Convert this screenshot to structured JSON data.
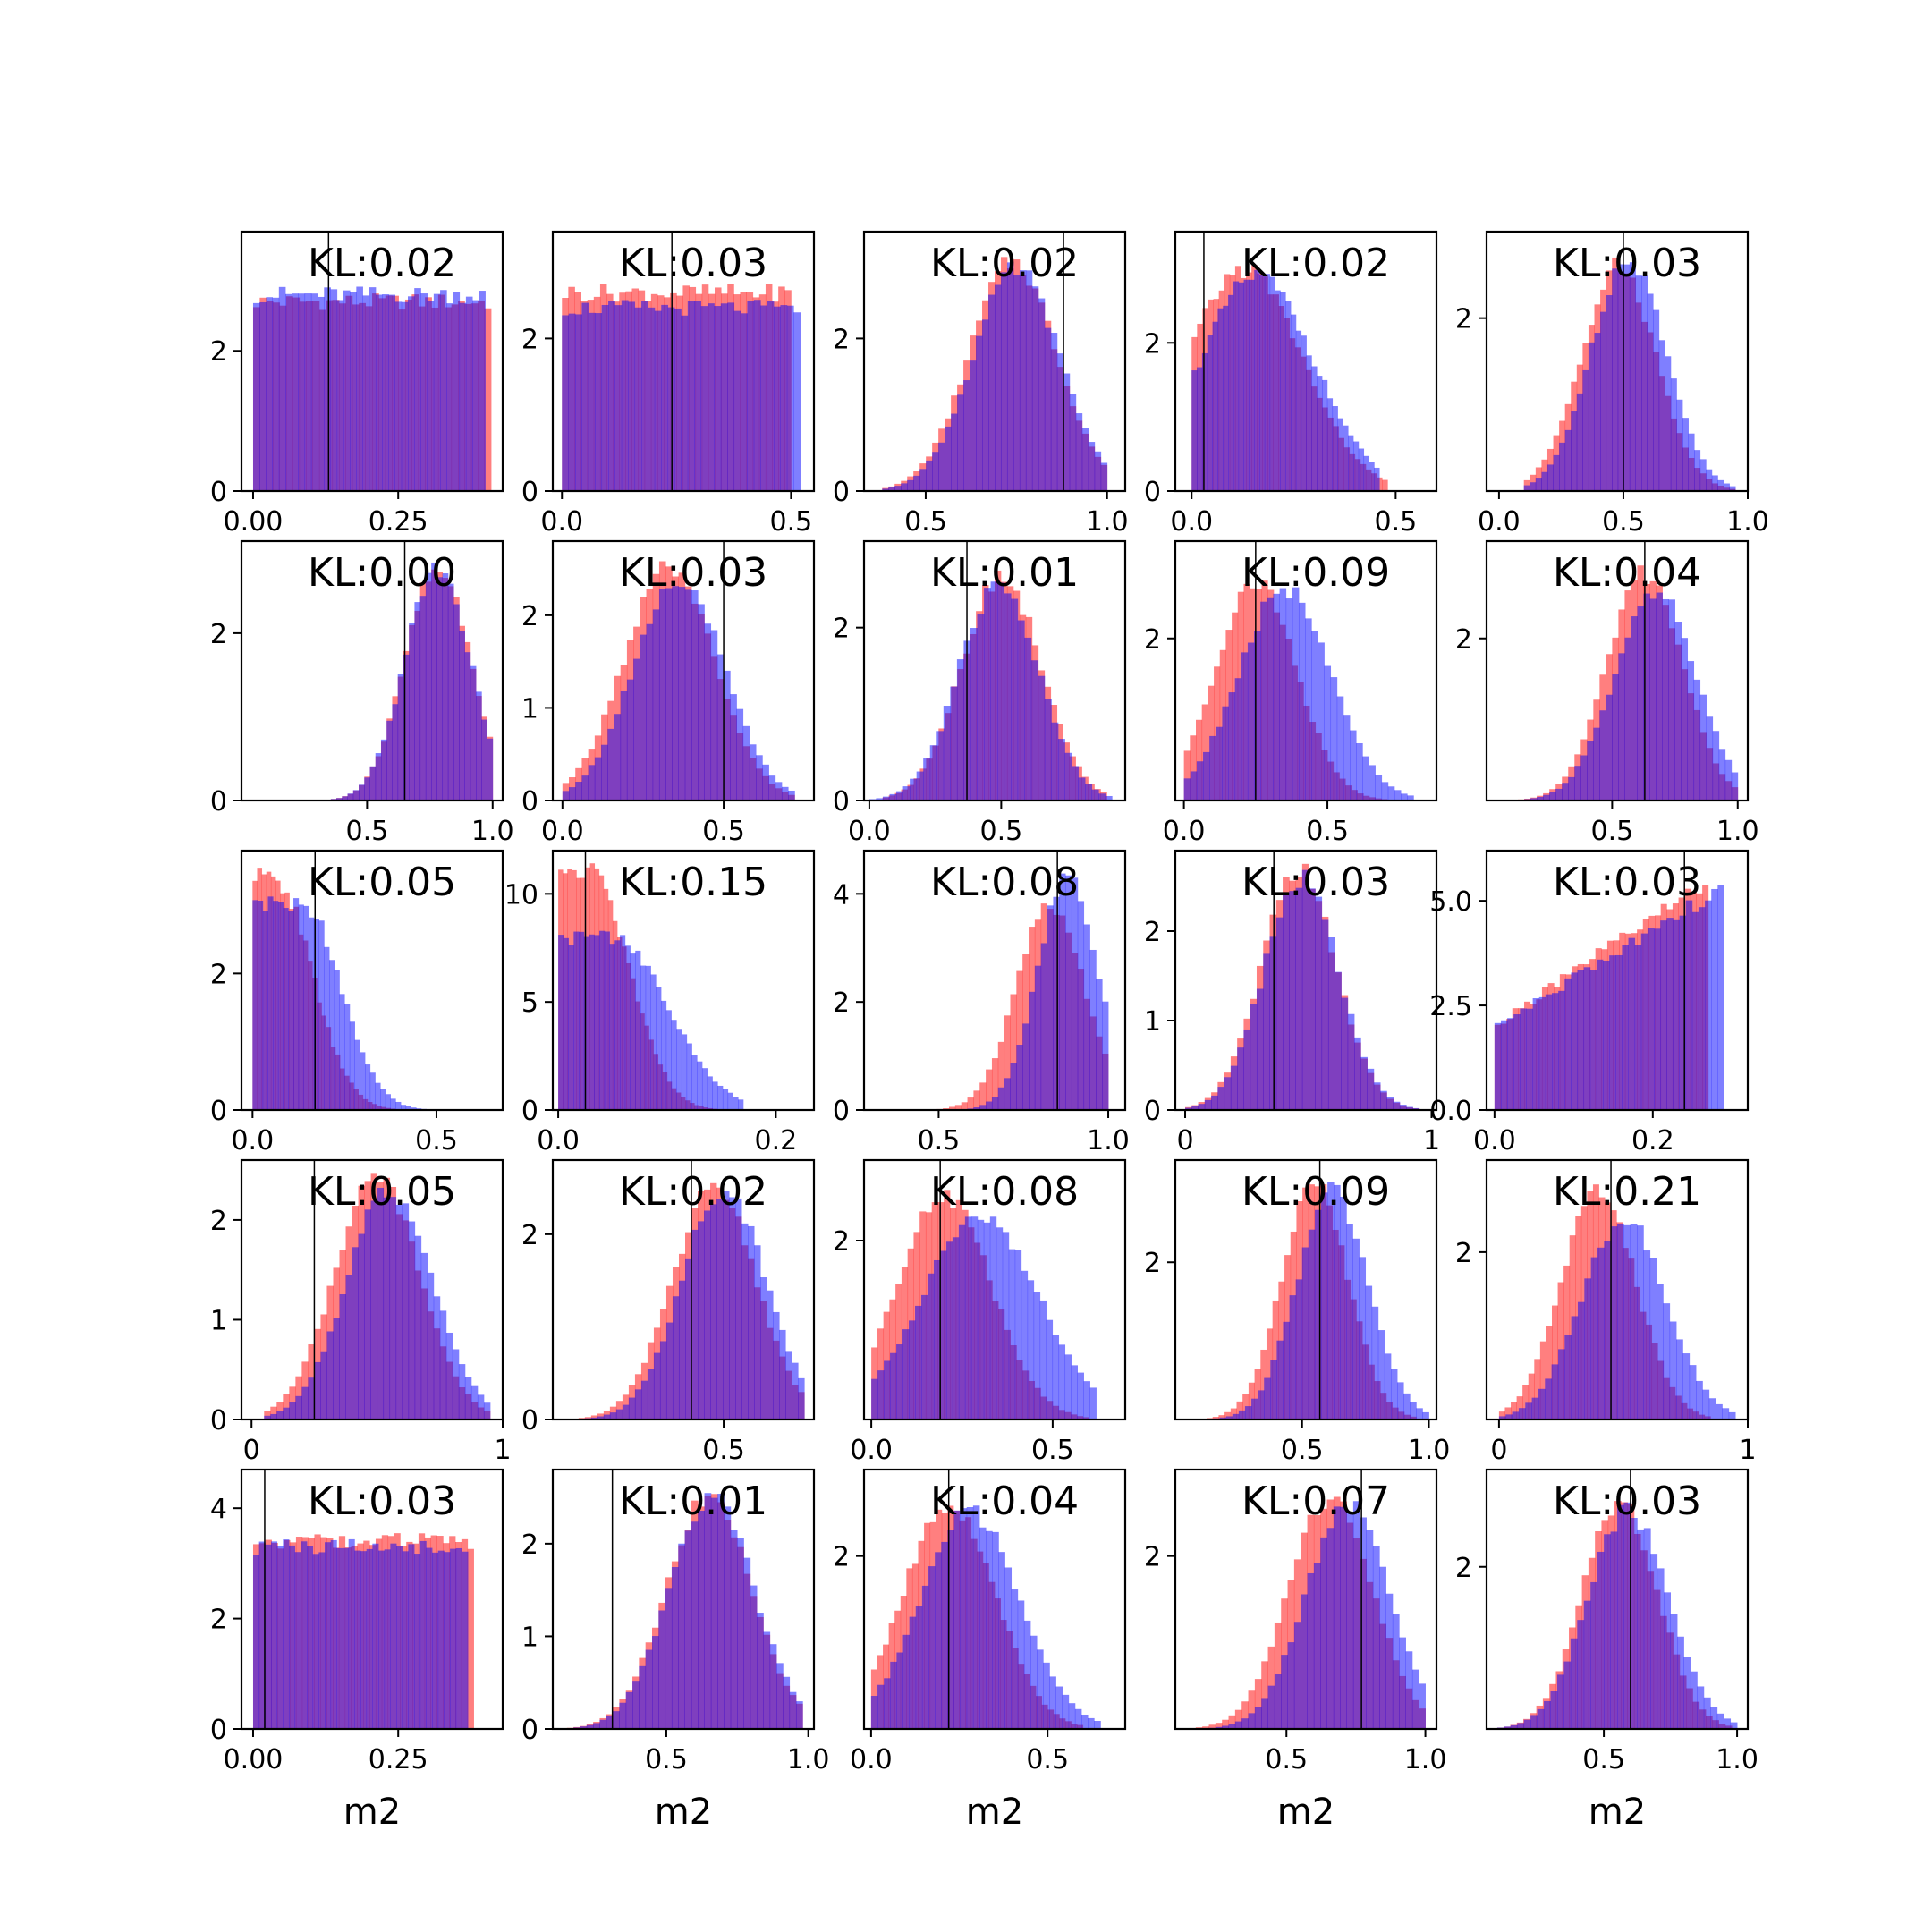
{
  "colors": {
    "prior": "#ff0000",
    "posterior": "#0000ff",
    "alpha": 0.5,
    "truth_line": "#000000"
  },
  "common_xlabel": "m2",
  "chart_data": [
    {
      "type": "bar",
      "panel": [
        0,
        0
      ],
      "kl_label": "KL:0.02",
      "xlim": [
        -0.02,
        0.43
      ],
      "ylim": [
        0,
        3.7
      ],
      "xticks": [
        0.0,
        0.25
      ],
      "xtick_labels": [
        "0.00",
        "0.25"
      ],
      "yticks": [
        0,
        2
      ],
      "ytick_labels": [
        "0",
        "2"
      ],
      "truth": 0.13,
      "prior": {
        "shape": "flat",
        "lo": 0.0,
        "hi": 0.41,
        "height": 2.7
      },
      "posterior": {
        "shape": "flat",
        "lo": 0.0,
        "hi": 0.4,
        "height": 2.8
      }
    },
    {
      "type": "bar",
      "panel": [
        0,
        1
      ],
      "kl_label": "KL:0.03",
      "xlim": [
        -0.02,
        0.55
      ],
      "ylim": [
        0,
        3.4
      ],
      "xticks": [
        0.0,
        0.5
      ],
      "xtick_labels": [
        "0.0",
        "0.5"
      ],
      "yticks": [
        0,
        2
      ],
      "ytick_labels": [
        "0",
        "2"
      ],
      "truth": 0.24,
      "prior": {
        "shape": "flat",
        "lo": 0.0,
        "hi": 0.5,
        "height": 2.6
      },
      "posterior": {
        "shape": "flat",
        "lo": 0.0,
        "hi": 0.52,
        "height": 2.4
      }
    },
    {
      "type": "bar",
      "panel": [
        0,
        2
      ],
      "kl_label": "KL:0.02",
      "xlim": [
        0.33,
        1.05
      ],
      "ylim": [
        0,
        3.4
      ],
      "xticks": [
        0.5,
        1.0
      ],
      "xtick_labels": [
        "0.5",
        "1.0"
      ],
      "yticks": [
        0,
        2
      ],
      "ytick_labels": [
        "0",
        "2"
      ],
      "truth": 0.88,
      "prior": {
        "shape": "gauss",
        "mu": 0.74,
        "sigma": 0.12,
        "peak": 3.0,
        "lo": 0.38,
        "hi": 1.0
      },
      "posterior": {
        "shape": "gauss",
        "mu": 0.75,
        "sigma": 0.12,
        "peak": 2.9,
        "lo": 0.38,
        "hi": 1.0
      }
    },
    {
      "type": "bar",
      "panel": [
        0,
        3
      ],
      "kl_label": "KL:0.02",
      "xlim": [
        -0.04,
        0.6
      ],
      "ylim": [
        0,
        3.5
      ],
      "xticks": [
        0.0,
        0.5
      ],
      "xtick_labels": [
        "0.0",
        "0.5"
      ],
      "yticks": [
        0,
        2
      ],
      "ytick_labels": [
        "0",
        "2"
      ],
      "truth": 0.03,
      "prior": {
        "shape": "gauss",
        "mu": 0.13,
        "sigma": 0.14,
        "peak": 3.0,
        "lo": 0.0,
        "hi": 0.48
      },
      "posterior": {
        "shape": "gauss",
        "mu": 0.16,
        "sigma": 0.14,
        "peak": 2.9,
        "lo": 0.0,
        "hi": 0.46
      }
    },
    {
      "type": "bar",
      "panel": [
        0,
        4
      ],
      "kl_label": "KL:0.03",
      "xlim": [
        -0.05,
        1.0
      ],
      "ylim": [
        0,
        3.0
      ],
      "xticks": [
        0.0,
        0.5,
        1.0
      ],
      "xtick_labels": [
        "0.0",
        "0.5",
        "1.0"
      ],
      "yticks": [
        2
      ],
      "ytick_labels": [
        "2"
      ],
      "truth": 0.5,
      "prior": {
        "shape": "gauss",
        "mu": 0.48,
        "sigma": 0.15,
        "peak": 2.6,
        "lo": 0.1,
        "hi": 0.95
      },
      "posterior": {
        "shape": "gauss",
        "mu": 0.52,
        "sigma": 0.15,
        "peak": 2.7,
        "lo": 0.1,
        "hi": 0.95
      }
    },
    {
      "type": "bar",
      "panel": [
        1,
        0
      ],
      "kl_label": "KL:0.00",
      "xlim": [
        0.0,
        1.04
      ],
      "ylim": [
        0,
        3.1
      ],
      "xticks": [
        0.5,
        1.0
      ],
      "xtick_labels": [
        "0.5",
        "1.0"
      ],
      "yticks": [
        0,
        2
      ],
      "ytick_labels": [
        "0",
        "2"
      ],
      "truth": 0.65,
      "prior": {
        "shape": "gauss",
        "mu": 0.78,
        "sigma": 0.13,
        "peak": 2.8,
        "lo": 0.2,
        "hi": 1.0
      },
      "posterior": {
        "shape": "gauss",
        "mu": 0.78,
        "sigma": 0.13,
        "peak": 2.8,
        "lo": 0.2,
        "hi": 1.0
      }
    },
    {
      "type": "bar",
      "panel": [
        1,
        1
      ],
      "kl_label": "KL:0.03",
      "xlim": [
        -0.03,
        0.78
      ],
      "ylim": [
        0,
        2.8
      ],
      "xticks": [
        0.0,
        0.5
      ],
      "xtick_labels": [
        "0.0",
        "0.5"
      ],
      "yticks": [
        0,
        1,
        2
      ],
      "ytick_labels": [
        "0",
        "1",
        "2"
      ],
      "truth": 0.5,
      "prior": {
        "shape": "gauss",
        "mu": 0.33,
        "sigma": 0.14,
        "peak": 2.5,
        "lo": 0.0,
        "hi": 0.72
      },
      "posterior": {
        "shape": "gauss",
        "mu": 0.36,
        "sigma": 0.14,
        "peak": 2.4,
        "lo": 0.0,
        "hi": 0.72
      }
    },
    {
      "type": "bar",
      "panel": [
        1,
        2
      ],
      "kl_label": "KL:0.01",
      "xlim": [
        -0.02,
        0.97
      ],
      "ylim": [
        0,
        3.0
      ],
      "xticks": [
        0.0,
        0.5
      ],
      "xtick_labels": [
        "0.0",
        "0.5"
      ],
      "yticks": [
        0,
        2
      ],
      "ytick_labels": [
        "0",
        "2"
      ],
      "truth": 0.37,
      "prior": {
        "shape": "gauss",
        "mu": 0.5,
        "sigma": 0.15,
        "peak": 2.6,
        "lo": 0.05,
        "hi": 0.9
      },
      "posterior": {
        "shape": "gauss",
        "mu": 0.49,
        "sigma": 0.15,
        "peak": 2.5,
        "lo": 0.0,
        "hi": 0.92
      }
    },
    {
      "type": "bar",
      "panel": [
        1,
        3
      ],
      "kl_label": "KL:0.09",
      "xlim": [
        -0.03,
        0.88
      ],
      "ylim": [
        0,
        3.2
      ],
      "xticks": [
        0.0,
        0.5
      ],
      "xtick_labels": [
        "0.0",
        "0.5"
      ],
      "yticks": [
        2
      ],
      "ytick_labels": [
        "2"
      ],
      "truth": 0.25,
      "prior": {
        "shape": "gauss",
        "mu": 0.25,
        "sigma": 0.14,
        "peak": 2.7,
        "lo": 0.0,
        "hi": 0.75
      },
      "posterior": {
        "shape": "gauss",
        "mu": 0.35,
        "sigma": 0.16,
        "peak": 2.6,
        "lo": 0.0,
        "hi": 0.8
      }
    },
    {
      "type": "bar",
      "panel": [
        1,
        4
      ],
      "kl_label": "KL:0.04",
      "xlim": [
        0.0,
        1.04
      ],
      "ylim": [
        0,
        3.2
      ],
      "xticks": [
        0.5,
        1.0
      ],
      "xtick_labels": [
        "0.5",
        "1.0"
      ],
      "yticks": [
        2
      ],
      "ytick_labels": [
        "2"
      ],
      "truth": 0.63,
      "prior": {
        "shape": "gauss",
        "mu": 0.63,
        "sigma": 0.15,
        "peak": 2.8,
        "lo": 0.1,
        "hi": 1.0
      },
      "posterior": {
        "shape": "gauss",
        "mu": 0.67,
        "sigma": 0.16,
        "peak": 2.6,
        "lo": 0.1,
        "hi": 1.0
      }
    },
    {
      "type": "bar",
      "panel": [
        2,
        0
      ],
      "kl_label": "KL:0.05",
      "xlim": [
        -0.03,
        0.68
      ],
      "ylim": [
        0,
        3.8
      ],
      "xticks": [
        0.0,
        0.5
      ],
      "xtick_labels": [
        "0.0",
        "0.5"
      ],
      "yticks": [
        0,
        2
      ],
      "ytick_labels": [
        "0",
        "2"
      ],
      "truth": 0.17,
      "prior": {
        "shape": "halfgauss",
        "mu": 0.06,
        "sigma": 0.1,
        "peak": 3.4,
        "lo": 0.0,
        "hi": 0.45
      },
      "posterior": {
        "shape": "halfgauss",
        "mu": 0.14,
        "sigma": 0.1,
        "peak": 3.0,
        "lo": 0.0,
        "hi": 0.5
      }
    },
    {
      "type": "bar",
      "panel": [
        2,
        1
      ],
      "kl_label": "KL:0.15",
      "xlim": [
        -0.005,
        0.235
      ],
      "ylim": [
        0,
        12.0
      ],
      "xticks": [
        0.0,
        0.2
      ],
      "xtick_labels": [
        "0.0",
        "0.2"
      ],
      "yticks": [
        0,
        5,
        10
      ],
      "ytick_labels": [
        "0",
        "5",
        "10"
      ],
      "truth": 0.025,
      "prior": {
        "shape": "halfgauss",
        "mu": 0.03,
        "sigma": 0.035,
        "peak": 11.0,
        "lo": 0.0,
        "hi": 0.15
      },
      "posterior": {
        "shape": "halfgauss",
        "mu": 0.05,
        "sigma": 0.05,
        "peak": 8.0,
        "lo": 0.0,
        "hi": 0.17
      }
    },
    {
      "type": "bar",
      "panel": [
        2,
        2
      ],
      "kl_label": "KL:0.08",
      "xlim": [
        0.28,
        1.05
      ],
      "ylim": [
        0,
        4.8
      ],
      "xticks": [
        0.5,
        1.0
      ],
      "xtick_labels": [
        "0.5",
        "1.0"
      ],
      "yticks": [
        0,
        2,
        4
      ],
      "ytick_labels": [
        "0",
        "2",
        "4"
      ],
      "truth": 0.85,
      "prior": {
        "shape": "gauss",
        "mu": 0.83,
        "sigma": 0.1,
        "peak": 3.8,
        "lo": 0.35,
        "hi": 1.0
      },
      "posterior": {
        "shape": "gauss",
        "mu": 0.88,
        "sigma": 0.09,
        "peak": 4.3,
        "lo": 0.35,
        "hi": 1.0
      }
    },
    {
      "type": "bar",
      "panel": [
        2,
        3
      ],
      "kl_label": "KL:0.03",
      "xlim": [
        -0.04,
        1.02
      ],
      "ylim": [
        0,
        2.9
      ],
      "xticks": [
        0.0,
        1.0
      ],
      "xtick_labels": [
        "0",
        "1"
      ],
      "yticks": [
        0,
        1,
        2
      ],
      "ytick_labels": [
        "0",
        "1",
        "2"
      ],
      "truth": 0.36,
      "prior": {
        "shape": "gauss",
        "mu": 0.46,
        "sigma": 0.15,
        "peak": 2.7,
        "lo": 0.0,
        "hi": 0.95
      },
      "posterior": {
        "shape": "gauss",
        "mu": 0.47,
        "sigma": 0.15,
        "peak": 2.6,
        "lo": 0.0,
        "hi": 0.95
      }
    },
    {
      "type": "bar",
      "panel": [
        2,
        4
      ],
      "kl_label": "KL:0.03",
      "xlim": [
        -0.01,
        0.32
      ],
      "ylim": [
        0,
        6.2
      ],
      "xticks": [
        0.0,
        0.2
      ],
      "xtick_labels": [
        "0.0",
        "0.2"
      ],
      "yticks": [
        0,
        2.5,
        5.0
      ],
      "ytick_labels": [
        "0.0",
        "2.5",
        "5.0"
      ],
      "truth": 0.24,
      "prior": {
        "shape": "ramp",
        "lo": 0.0,
        "hi": 0.27,
        "h0": 2.0,
        "h1": 5.5
      },
      "posterior": {
        "shape": "ramp",
        "lo": 0.0,
        "hi": 0.29,
        "h0": 2.0,
        "h1": 5.3
      }
    },
    {
      "type": "bar",
      "panel": [
        3,
        0
      ],
      "kl_label": "KL:0.05",
      "xlim": [
        -0.04,
        1.0
      ],
      "ylim": [
        0,
        2.6
      ],
      "xticks": [
        0.0,
        1.0
      ],
      "xtick_labels": [
        "0",
        "1"
      ],
      "yticks": [
        0,
        1,
        2
      ],
      "ytick_labels": [
        "0",
        "1",
        "2"
      ],
      "truth": 0.25,
      "prior": {
        "shape": "gauss",
        "mu": 0.5,
        "sigma": 0.17,
        "peak": 2.4,
        "lo": 0.05,
        "hi": 0.95
      },
      "posterior": {
        "shape": "gauss",
        "mu": 0.55,
        "sigma": 0.17,
        "peak": 2.3,
        "lo": 0.05,
        "hi": 0.95
      }
    },
    {
      "type": "bar",
      "panel": [
        3,
        1
      ],
      "kl_label": "KL:0.02",
      "xlim": [
        -0.03,
        0.78
      ],
      "ylim": [
        0,
        2.8
      ],
      "xticks": [
        0.5
      ],
      "xtick_labels": [
        "0.5"
      ],
      "yticks": [
        0,
        2
      ],
      "ytick_labels": [
        "0",
        "2"
      ],
      "truth": 0.4,
      "prior": {
        "shape": "gauss",
        "mu": 0.47,
        "sigma": 0.13,
        "peak": 2.5,
        "lo": 0.05,
        "hi": 0.75
      },
      "posterior": {
        "shape": "gauss",
        "mu": 0.5,
        "sigma": 0.13,
        "peak": 2.5,
        "lo": 0.05,
        "hi": 0.75
      }
    },
    {
      "type": "bar",
      "panel": [
        3,
        2
      ],
      "kl_label": "KL:0.08",
      "xlim": [
        -0.02,
        0.7
      ],
      "ylim": [
        0,
        2.9
      ],
      "xticks": [
        0.0,
        0.5
      ],
      "xtick_labels": [
        "0.0",
        "0.5"
      ],
      "yticks": [
        2
      ],
      "ytick_labels": [
        "2"
      ],
      "truth": 0.19,
      "prior": {
        "shape": "gauss",
        "mu": 0.2,
        "sigma": 0.13,
        "peak": 2.5,
        "lo": 0.0,
        "hi": 0.6
      },
      "posterior": {
        "shape": "gauss",
        "mu": 0.3,
        "sigma": 0.16,
        "peak": 2.3,
        "lo": 0.0,
        "hi": 0.62
      }
    },
    {
      "type": "bar",
      "panel": [
        3,
        3
      ],
      "kl_label": "KL:0.09",
      "xlim": [
        0.0,
        1.03
      ],
      "ylim": [
        0,
        3.3
      ],
      "xticks": [
        0.5,
        1.0
      ],
      "xtick_labels": [
        "0.5",
        "1.0"
      ],
      "yticks": [
        2
      ],
      "ytick_labels": [
        "2"
      ],
      "truth": 0.57,
      "prior": {
        "shape": "gauss",
        "mu": 0.55,
        "sigma": 0.13,
        "peak": 3.0,
        "lo": 0.1,
        "hi": 0.95
      },
      "posterior": {
        "shape": "gauss",
        "mu": 0.62,
        "sigma": 0.14,
        "peak": 2.9,
        "lo": 0.1,
        "hi": 1.0
      }
    },
    {
      "type": "bar",
      "panel": [
        3,
        4
      ],
      "kl_label": "KL:0.21",
      "xlim": [
        -0.05,
        1.0
      ],
      "ylim": [
        0,
        3.1
      ],
      "xticks": [
        0.0,
        1.0
      ],
      "xtick_labels": [
        "0",
        "1"
      ],
      "yticks": [
        2
      ],
      "ytick_labels": [
        "2"
      ],
      "truth": 0.45,
      "prior": {
        "shape": "gauss",
        "mu": 0.4,
        "sigma": 0.15,
        "peak": 2.7,
        "lo": 0.0,
        "hi": 0.85
      },
      "posterior": {
        "shape": "gauss",
        "mu": 0.5,
        "sigma": 0.17,
        "peak": 2.4,
        "lo": 0.0,
        "hi": 0.95
      }
    },
    {
      "type": "bar",
      "panel": [
        4,
        0
      ],
      "kl_label": "KL:0.03",
      "xlim": [
        -0.02,
        0.43
      ],
      "ylim": [
        0,
        4.7
      ],
      "xticks": [
        0.0,
        0.25
      ],
      "xtick_labels": [
        "0.00",
        "0.25"
      ],
      "yticks": [
        0,
        2,
        4
      ],
      "ytick_labels": [
        "0",
        "2",
        "4"
      ],
      "truth": 0.02,
      "prior": {
        "shape": "flat",
        "lo": 0.0,
        "hi": 0.38,
        "height": 3.4
      },
      "posterior": {
        "shape": "flat",
        "lo": 0.0,
        "hi": 0.37,
        "height": 3.3
      }
    },
    {
      "type": "bar",
      "panel": [
        4,
        1
      ],
      "kl_label": "KL:0.01",
      "xlim": [
        0.1,
        1.02
      ],
      "ylim": [
        0,
        2.8
      ],
      "xticks": [
        0.5,
        1.0
      ],
      "xtick_labels": [
        "0.5",
        "1.0"
      ],
      "yticks": [
        0,
        1,
        2
      ],
      "ytick_labels": [
        "0",
        "1",
        "2"
      ],
      "truth": 0.31,
      "prior": {
        "shape": "gauss",
        "mu": 0.65,
        "sigma": 0.15,
        "peak": 2.5,
        "lo": 0.15,
        "hi": 0.98
      },
      "posterior": {
        "shape": "gauss",
        "mu": 0.66,
        "sigma": 0.15,
        "peak": 2.5,
        "lo": 0.15,
        "hi": 0.98
      }
    },
    {
      "type": "bar",
      "panel": [
        4,
        2
      ],
      "kl_label": "KL:0.04",
      "xlim": [
        -0.02,
        0.72
      ],
      "ylim": [
        0,
        3.0
      ],
      "xticks": [
        0.0,
        0.5
      ],
      "xtick_labels": [
        "0.0",
        "0.5"
      ],
      "yticks": [
        2
      ],
      "ytick_labels": [
        "2"
      ],
      "truth": 0.22,
      "prior": {
        "shape": "gauss",
        "mu": 0.22,
        "sigma": 0.13,
        "peak": 2.6,
        "lo": 0.0,
        "hi": 0.6
      },
      "posterior": {
        "shape": "gauss",
        "mu": 0.28,
        "sigma": 0.14,
        "peak": 2.5,
        "lo": 0.0,
        "hi": 0.65
      }
    },
    {
      "type": "bar",
      "panel": [
        4,
        3
      ],
      "kl_label": "KL:0.07",
      "xlim": [
        0.1,
        1.04
      ],
      "ylim": [
        0,
        3.0
      ],
      "xticks": [
        0.5,
        1.0
      ],
      "xtick_labels": [
        "0.5",
        "1.0"
      ],
      "yticks": [
        2
      ],
      "ytick_labels": [
        "2"
      ],
      "truth": 0.77,
      "prior": {
        "shape": "gauss",
        "mu": 0.66,
        "sigma": 0.15,
        "peak": 2.7,
        "lo": 0.15,
        "hi": 1.0
      },
      "posterior": {
        "shape": "gauss",
        "mu": 0.72,
        "sigma": 0.15,
        "peak": 2.6,
        "lo": 0.15,
        "hi": 1.0
      }
    },
    {
      "type": "bar",
      "panel": [
        4,
        4
      ],
      "kl_label": "KL:0.03",
      "xlim": [
        0.06,
        1.04
      ],
      "ylim": [
        0,
        3.2
      ],
      "xticks": [
        0.5,
        1.0
      ],
      "xtick_labels": [
        "0.5",
        "1.0"
      ],
      "yticks": [
        2
      ],
      "ytick_labels": [
        "2"
      ],
      "truth": 0.6,
      "prior": {
        "shape": "gauss",
        "mu": 0.56,
        "sigma": 0.14,
        "peak": 2.8,
        "lo": 0.1,
        "hi": 0.98
      },
      "posterior": {
        "shape": "gauss",
        "mu": 0.59,
        "sigma": 0.15,
        "peak": 2.7,
        "lo": 0.1,
        "hi": 1.0
      }
    }
  ]
}
